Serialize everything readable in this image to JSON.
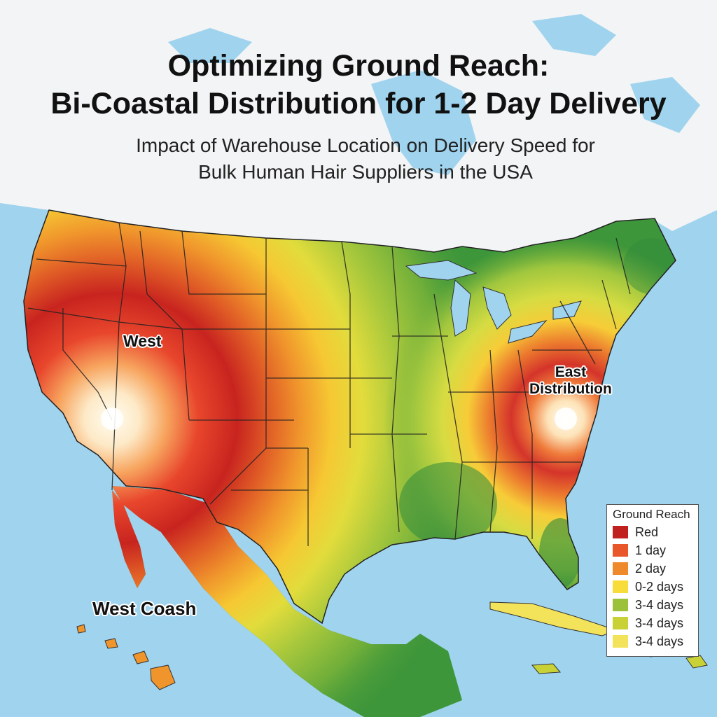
{
  "title_line1": "Optimizing Ground Reach:",
  "title_line2": "Bi-Coastal Distribution for 1-2 Day Delivery",
  "subtitle_line1": "Impact of Warehouse Location on Delivery Speed for",
  "subtitle_line2": "Bulk Human Hair Suppliers in the USA",
  "map_labels": {
    "west": "West",
    "east_line1": "East",
    "east_line2": "Distribution",
    "west_coast": "West Coash"
  },
  "legend": {
    "title": "Ground Reach",
    "items": [
      {
        "label": "Red",
        "color": "#c0201e"
      },
      {
        "label": "1 day",
        "color": "#e8562a"
      },
      {
        "label": "2 day",
        "color": "#ef8a2c"
      },
      {
        "label": "0-2 days",
        "color": "#f7dc3a"
      },
      {
        "label": "3-4 days",
        "color": "#9cc23c"
      },
      {
        "label": "3-4 days",
        "color": "#c8d236"
      },
      {
        "label": "3-4 days",
        "color": "#f3e35a"
      }
    ]
  },
  "colors": {
    "ocean": "#9fd3ee",
    "canada": "#f2f4f5",
    "hub_glow": "#fffbe8",
    "far_green": "#2f8a3c"
  }
}
